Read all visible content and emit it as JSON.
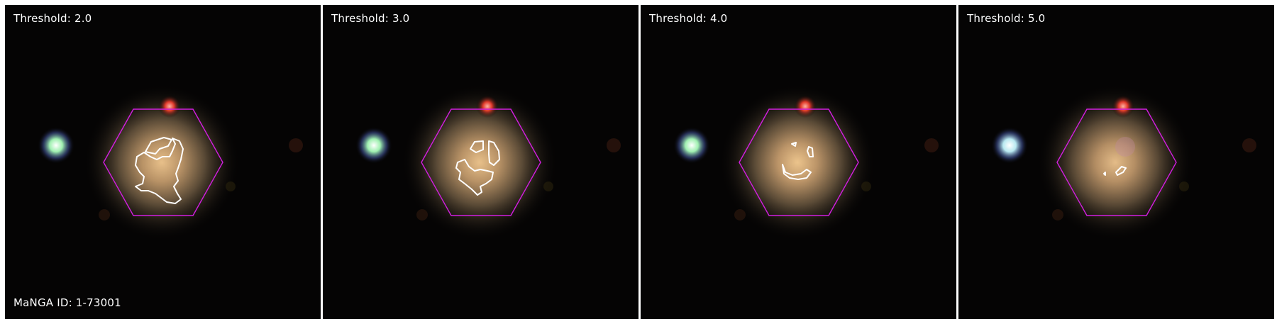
{
  "panels": [
    {
      "threshold_label": "Threshold: 2.0"
    },
    {
      "threshold_label": "Threshold: 3.0"
    },
    {
      "threshold_label": "Threshold: 4.0"
    },
    {
      "threshold_label": "Threshold: 5.0"
    }
  ],
  "manga_id_label": "MaNGA ID: 1-73001",
  "colors": {
    "hexagon": "#d21ee0",
    "contour": "#ffffff",
    "background": "#050404",
    "divider": "#ffffff"
  },
  "icons": [
    "galaxy-image",
    "ifu-hexagon",
    "contour-lines",
    "star"
  ]
}
